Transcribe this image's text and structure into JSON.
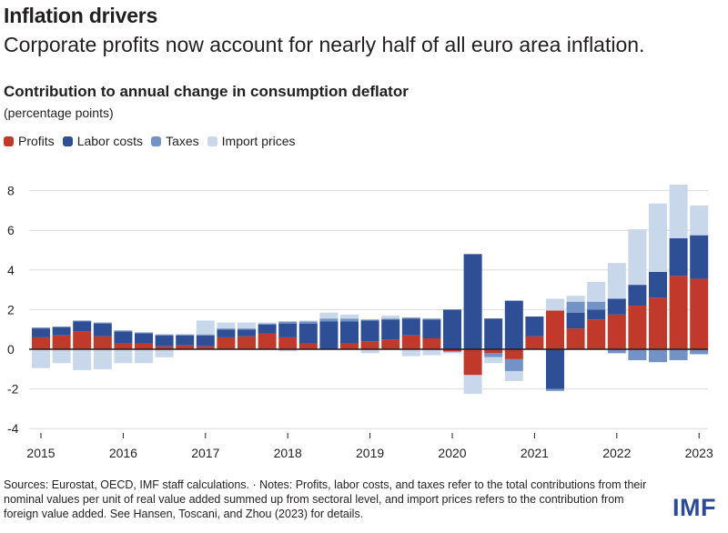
{
  "header": {
    "title": "Inflation drivers",
    "subtitle": "Corporate profits now account for nearly half of all euro area inflation."
  },
  "footer": {
    "notes": "Sources: Eurostat, OECD, IMF staff calculations. · Notes: Profits, labor costs, and taxes refer to the total contributions from their nominal values per unit of real value added summed up from sectoral level, and import prices refers to the contribution from foreign value added. See Hansen, Toscani, and Zhou (2023) for details.",
    "logo": "IMF"
  },
  "colors": {
    "profits": "#c0392b",
    "labor": "#2e4e96",
    "taxes": "#7393c6",
    "imports": "#c9d7ea"
  },
  "chart_data": {
    "type": "bar",
    "stacked": true,
    "title": "Contribution to annual change in consumption deflator",
    "ylabel": "(percentage points)",
    "ylim": [
      -4,
      9
    ],
    "yticks": [
      8,
      6,
      4,
      2,
      0,
      -2,
      -4
    ],
    "xticks": [
      "2015",
      "2016",
      "2017",
      "2018",
      "2019",
      "2020",
      "2021",
      "2022",
      "2023"
    ],
    "categories": [
      "2015Q1",
      "2015Q2",
      "2015Q3",
      "2015Q4",
      "2016Q1",
      "2016Q2",
      "2016Q3",
      "2016Q4",
      "2017Q1",
      "2017Q2",
      "2017Q3",
      "2017Q4",
      "2018Q1",
      "2018Q2",
      "2018Q3",
      "2018Q4",
      "2019Q1",
      "2019Q2",
      "2019Q3",
      "2019Q4",
      "2020Q1",
      "2020Q2",
      "2020Q3",
      "2020Q4",
      "2021Q1",
      "2021Q2",
      "2021Q3",
      "2021Q4",
      "2022Q1",
      "2022Q2",
      "2022Q3",
      "2022Q4",
      "2023Q1"
    ],
    "series": [
      {
        "name": "Profits",
        "key": "profits",
        "values": [
          0.6,
          0.7,
          0.9,
          0.65,
          0.3,
          0.3,
          0.15,
          0.2,
          0.15,
          0.6,
          0.65,
          0.8,
          0.6,
          0.3,
          0,
          0.3,
          0.4,
          0.5,
          0.7,
          0.55,
          -0.1,
          -1.3,
          -0.2,
          -0.5,
          0.65,
          1.95,
          1.05,
          1.5,
          1.75,
          2.2,
          2.6,
          3.7,
          3.55
        ]
      },
      {
        "name": "Labor costs",
        "key": "labor",
        "values": [
          0.45,
          0.4,
          0.5,
          0.65,
          0.6,
          0.5,
          0.55,
          0.5,
          0.55,
          0.4,
          0.35,
          0.45,
          0.7,
          1.0,
          1.4,
          1.1,
          1.05,
          1,
          0.85,
          0.95,
          2.0,
          4.8,
          1.55,
          2.45,
          1.0,
          -2.0,
          0.8,
          0.5,
          0.8,
          1.05,
          1.3,
          1.9,
          2.2
        ]
      },
      {
        "name": "Taxes",
        "key": "taxes",
        "values": [
          0.05,
          0.05,
          0.05,
          0.05,
          0.05,
          0.05,
          0.05,
          0.05,
          0.05,
          0.05,
          0.05,
          0.05,
          0.1,
          0.1,
          0.15,
          0.15,
          0.05,
          0.05,
          0.05,
          0.05,
          -0.05,
          0,
          -0.2,
          -0.6,
          0,
          -0.1,
          0.55,
          0.4,
          -0.2,
          -0.55,
          -0.65,
          -0.55,
          -0.25
        ]
      },
      {
        "name": "Import prices",
        "key": "imports",
        "values": [
          -0.95,
          -0.7,
          -1.05,
          -1.0,
          -0.7,
          -0.7,
          -0.4,
          0,
          0.7,
          0.3,
          0.3,
          0.05,
          -0.1,
          0.05,
          0.3,
          0.2,
          -0.2,
          0.15,
          -0.35,
          -0.3,
          -0.05,
          -0.95,
          -0.3,
          -0.5,
          0,
          0.6,
          0.3,
          1.0,
          1.8,
          2.8,
          3.45,
          2.7,
          1.5
        ]
      }
    ]
  }
}
